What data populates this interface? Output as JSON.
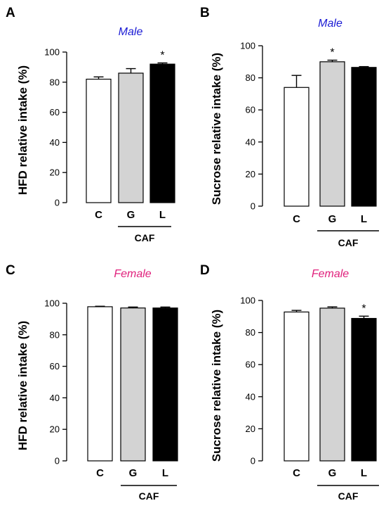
{
  "chart_data": [
    {
      "panel": "A",
      "type": "bar",
      "title": "Male",
      "title_color": "#1a1ad4",
      "ylabel": "HFD relative intake (%)",
      "ylim": [
        0,
        100
      ],
      "yticks": [
        "0",
        "20",
        "40",
        "60",
        "80",
        "100"
      ],
      "categories": [
        "C",
        "G",
        "L"
      ],
      "values": [
        82,
        86,
        92
      ],
      "errors": [
        1.5,
        3,
        0.8
      ],
      "bar_colors": [
        "#ffffff",
        "#d3d3d3",
        "#000000"
      ],
      "significance": [
        "",
        "",
        "*"
      ],
      "group_label": "CAF",
      "grid": false
    },
    {
      "panel": "B",
      "type": "bar",
      "title": "Male",
      "title_color": "#1a1ad4",
      "ylabel": "Sucrose relative intake (%)",
      "ylim": [
        0,
        100
      ],
      "yticks": [
        "0",
        "20",
        "40",
        "60",
        "80",
        "100"
      ],
      "categories": [
        "C",
        "G",
        "L"
      ],
      "values": [
        74,
        90,
        86.5
      ],
      "errors": [
        7.5,
        1,
        0.5
      ],
      "bar_colors": [
        "#ffffff",
        "#d3d3d3",
        "#000000"
      ],
      "significance": [
        "",
        "*",
        ""
      ],
      "group_label": "CAF",
      "grid": false
    },
    {
      "panel": "C",
      "type": "bar",
      "title": "Female",
      "title_color": "#e0207c",
      "ylabel": "HFD relative intake (%)",
      "ylim": [
        0,
        100
      ],
      "yticks": [
        "0",
        "20",
        "40",
        "60",
        "80",
        "100"
      ],
      "categories": [
        "C",
        "G",
        "L"
      ],
      "values": [
        97.8,
        97,
        97
      ],
      "errors": [
        0.3,
        0.6,
        0.6
      ],
      "bar_colors": [
        "#ffffff",
        "#d3d3d3",
        "#000000"
      ],
      "significance": [
        "",
        "",
        ""
      ],
      "group_label": "CAF",
      "grid": false
    },
    {
      "panel": "D",
      "type": "bar",
      "title": "Female",
      "title_color": "#e0207c",
      "ylabel": "Sucrose relative intake (%)",
      "ylim": [
        0,
        100
      ],
      "yticks": [
        "0",
        "20",
        "40",
        "60",
        "80",
        "100"
      ],
      "categories": [
        "C",
        "G",
        "L"
      ],
      "values": [
        92.8,
        95.2,
        88.8
      ],
      "errors": [
        1,
        0.8,
        1.4
      ],
      "bar_colors": [
        "#ffffff",
        "#d3d3d3",
        "#000000"
      ],
      "significance": [
        "",
        "",
        "*"
      ],
      "group_label": "CAF",
      "grid": false
    }
  ]
}
